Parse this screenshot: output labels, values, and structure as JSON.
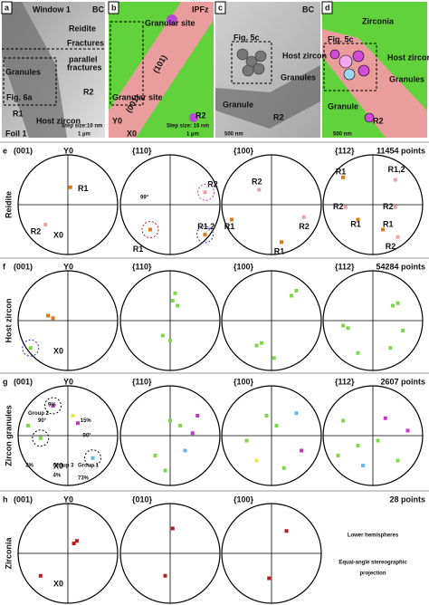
{
  "top": [
    {
      "letter": "a",
      "labels": [
        "Window 1",
        "BC",
        "Reidite",
        "Fractures",
        "parallel",
        "fractures",
        "Granules",
        "Fig. 6a",
        "R2",
        "R1",
        "Host zircon",
        "Foil 1",
        "Step size:10 nm",
        "1 µm"
      ]
    },
    {
      "letter": "b",
      "labels": [
        "IPFz",
        "Granular site",
        "Granular site",
        "(101)",
        "(001)",
        "R2",
        "Y0",
        "X0",
        "Step size: 16 nm",
        "1 µm"
      ]
    },
    {
      "letter": "c",
      "labels": [
        "BC",
        "Fig. 5c",
        "Host zircon",
        "Granules",
        "Granule",
        "R2",
        "500 nm"
      ]
    },
    {
      "letter": "d",
      "labels": [
        "Zirconia",
        "Fig. 5c",
        "Host zircon",
        "Granules",
        "Granule",
        "R2",
        "500 nm"
      ]
    }
  ],
  "rows": [
    {
      "letter": "e",
      "name": "Reidite",
      "count": "11454 points",
      "plots": [
        {
          "title": "(001)",
          "axis_y": "Y0",
          "axis_x": "X0",
          "labels": [
            "R1",
            "R2"
          ]
        },
        {
          "title": "{110}",
          "labels": [
            "R2",
            "99°",
            "R1",
            "R1,2"
          ]
        },
        {
          "title": "{100}",
          "labels": [
            "R2",
            "R2",
            "R1",
            "R1"
          ]
        },
        {
          "title": "{112}",
          "labels": [
            "R1",
            "R1,2",
            "R2",
            "R2",
            "R1",
            "R1",
            "R2"
          ]
        }
      ]
    },
    {
      "letter": "f",
      "name": "Host zircon",
      "count": "54284 points",
      "plots": [
        {
          "title": "(001)",
          "axis_y": "Y0",
          "axis_x": "X0"
        },
        {
          "title": "{110}"
        },
        {
          "title": "{100}"
        },
        {
          "title": "{112}"
        }
      ]
    },
    {
      "letter": "g",
      "name": "Zircon granules",
      "count": "2607 points",
      "plots": [
        {
          "title": "(001)",
          "axis_y": "Y0",
          "axis_x": "X0",
          "labels": [
            "9%",
            "Group 2",
            "90°",
            "15%",
            "90°",
            "2%",
            "Group 3",
            "4%",
            "Group 1",
            "73%"
          ]
        },
        {
          "title": "{110}"
        },
        {
          "title": "{100}"
        },
        {
          "title": "{112}"
        }
      ]
    },
    {
      "letter": "h",
      "name": "Zirconia",
      "count": "28 points",
      "plots": [
        {
          "title": "(001)",
          "axis_y": "Y0",
          "axis_x": "X0"
        },
        {
          "title": "{010}"
        },
        {
          "title": "{100}"
        }
      ],
      "notes": [
        "Lower hemispheres",
        "Equal-angle stereographic",
        "projection"
      ]
    }
  ]
}
